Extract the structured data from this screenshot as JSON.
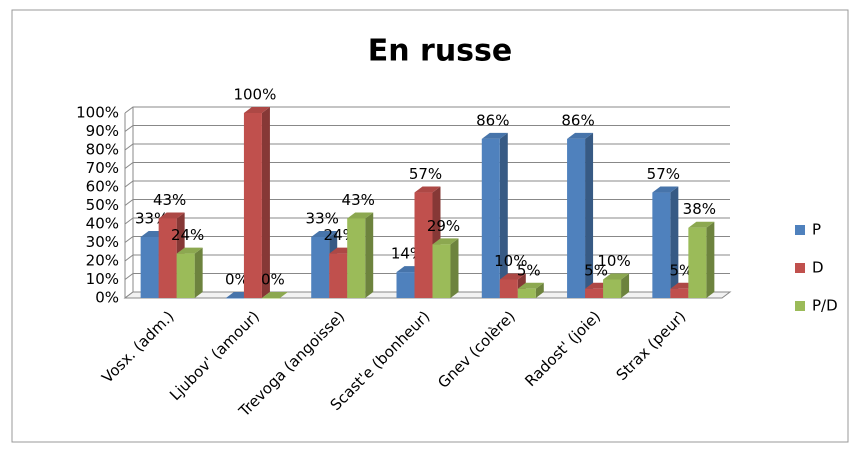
{
  "chart_data": {
    "type": "bar3d",
    "title": "En russe",
    "categories": [
      "Vosx. (adm.)",
      "Ljubov' (amour)",
      "Trevoga (angoisse)",
      "Scast'e (bonheur)",
      "Gnev (colère)",
      "Radost' (joie)",
      "Strax (peur)"
    ],
    "series": [
      {
        "name": "P",
        "color": "#4f81bd",
        "values": [
          33,
          0,
          33,
          14,
          86,
          86,
          57
        ],
        "value_labels": [
          "33%",
          "0%",
          "33%",
          "14%",
          "86%",
          "86%",
          "57%"
        ]
      },
      {
        "name": "D",
        "color": "#c0504d",
        "values": [
          43,
          100,
          24,
          57,
          10,
          5,
          5
        ],
        "value_labels": [
          "43%",
          "100%",
          "24%",
          "57%",
          "10%",
          "5%",
          "5%"
        ]
      },
      {
        "name": "P/D",
        "color": "#9bbb59",
        "values": [
          24,
          0,
          43,
          29,
          5,
          10,
          38
        ],
        "value_labels": [
          "24%",
          "0%",
          "43%",
          "29%",
          "5%",
          "10%",
          "38%"
        ]
      }
    ],
    "ylim": [
      0,
      100
    ],
    "yticks": [
      {
        "value": 0,
        "label": "0%"
      },
      {
        "value": 10,
        "label": "10%"
      },
      {
        "value": 20,
        "label": "20%"
      },
      {
        "value": 30,
        "label": "30%"
      },
      {
        "value": 40,
        "label": "40%"
      },
      {
        "value": 50,
        "label": "50%"
      },
      {
        "value": 60,
        "label": "60%"
      },
      {
        "value": 70,
        "label": "70%"
      },
      {
        "value": 80,
        "label": "80%"
      },
      {
        "value": 90,
        "label": "90%"
      },
      {
        "value": 100,
        "label": "100%"
      }
    ],
    "grid": true,
    "legend": "right"
  }
}
